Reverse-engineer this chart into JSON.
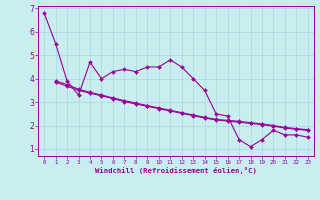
{
  "xlabel": "Windchill (Refroidissement éolien,°C)",
  "background_color": "#c8eef0",
  "grid_color": "#a8d8dc",
  "line_color": "#990099",
  "xlim": [
    -0.5,
    23.5
  ],
  "ylim": [
    0.7,
    7.1
  ],
  "xticks": [
    0,
    1,
    2,
    3,
    4,
    5,
    6,
    7,
    8,
    9,
    10,
    11,
    12,
    13,
    14,
    15,
    16,
    17,
    18,
    19,
    20,
    21,
    22,
    23
  ],
  "yticks": [
    1,
    2,
    3,
    4,
    5,
    6,
    7
  ],
  "series1_x": [
    0,
    1,
    2,
    3,
    4,
    5,
    6,
    7,
    8,
    9,
    10,
    11,
    12,
    13,
    14,
    15,
    16,
    17,
    18,
    19,
    20,
    21,
    22,
    23
  ],
  "series1_y": [
    6.8,
    5.5,
    3.9,
    3.3,
    4.7,
    4.0,
    4.3,
    4.4,
    4.3,
    4.5,
    4.5,
    4.8,
    4.5,
    4.0,
    3.5,
    2.5,
    2.4,
    1.4,
    1.1,
    1.4,
    1.8,
    1.6,
    1.6,
    1.5
  ],
  "series2_x": [
    1,
    2,
    3,
    4,
    5,
    6,
    7,
    8,
    9,
    10,
    11,
    12,
    13,
    14,
    15,
    16,
    17,
    18,
    19,
    20,
    21,
    22,
    23
  ],
  "series2_y": [
    3.9,
    3.75,
    3.55,
    3.42,
    3.3,
    3.18,
    3.06,
    2.96,
    2.85,
    2.75,
    2.65,
    2.55,
    2.45,
    2.35,
    2.26,
    2.22,
    2.18,
    2.12,
    2.07,
    2.0,
    1.92,
    1.87,
    1.82
  ],
  "series3_x": [
    1,
    2,
    3,
    4,
    5,
    6,
    7,
    8,
    9,
    10,
    11,
    12,
    13,
    14,
    15,
    16,
    17,
    18,
    19,
    20,
    21,
    22,
    23
  ],
  "series3_y": [
    3.85,
    3.68,
    3.5,
    3.38,
    3.27,
    3.15,
    3.02,
    2.92,
    2.82,
    2.72,
    2.62,
    2.52,
    2.42,
    2.32,
    2.24,
    2.19,
    2.14,
    2.09,
    2.04,
    1.97,
    1.89,
    1.84,
    1.79
  ]
}
